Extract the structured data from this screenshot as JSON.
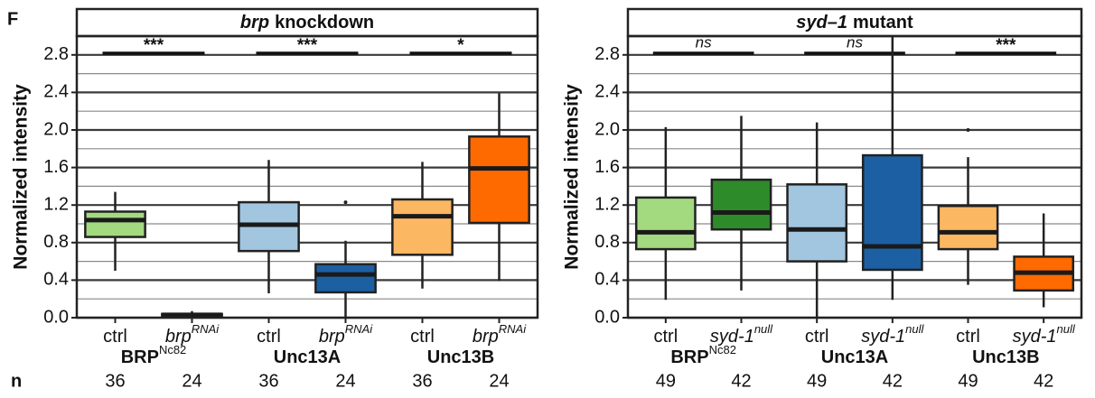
{
  "panel_label": "F",
  "chart_data": [
    {
      "type": "box",
      "title": [
        "brp",
        "knockdown"
      ],
      "ylabel": "Normalized intensity",
      "ylim": [
        0,
        3.0
      ],
      "yticks": [
        {
          "value": 0,
          "label": "0.0"
        },
        0.4,
        0.8,
        1.2,
        1.6,
        {
          "value": 2,
          "label": "2.0"
        },
        2.4,
        2.8
      ],
      "minor_yticks": [
        0.2,
        0.6,
        1.0,
        1.4,
        1.8,
        2.2,
        2.6
      ],
      "grid": true,
      "categories": [
        {
          "label": "ctrl"
        },
        {
          "label": "brp",
          "sup": "RNAi"
        },
        {
          "label": "ctrl"
        },
        {
          "label": "brp",
          "sup": "RNAi"
        },
        {
          "label": "ctrl"
        },
        {
          "label": "brp",
          "sup": "RNAi"
        }
      ],
      "groups": [
        {
          "label": "BRP",
          "sup": "Nc82"
        },
        {
          "label": "Unc13A"
        },
        {
          "label": "Unc13B"
        }
      ],
      "n_label": "n",
      "n": [
        36,
        24,
        36,
        24,
        36,
        24
      ],
      "significance": [
        "***",
        "***",
        "*"
      ],
      "boxes": [
        {
          "color": "#a3d97f",
          "low": 0.5,
          "q1": 0.86,
          "median": 1.04,
          "q3": 1.13,
          "high": 1.34
        },
        {
          "color": "#2e8b2a",
          "low": 0.0,
          "q1": 0.01,
          "median": 0.03,
          "q3": 0.04,
          "high": 0.07
        },
        {
          "color": "#a2c6e0",
          "low": 0.26,
          "q1": 0.71,
          "median": 0.99,
          "q3": 1.23,
          "high": 1.68
        },
        {
          "color": "#1c60a3",
          "low": 0.0,
          "q1": 0.27,
          "median": 0.46,
          "q3": 0.57,
          "high": 0.82,
          "outliers": [
            1.23
          ]
        },
        {
          "color": "#fcb763",
          "low": 0.31,
          "q1": 0.67,
          "median": 1.08,
          "q3": 1.26,
          "high": 1.66
        },
        {
          "color": "#ff6a00",
          "low": 0.39,
          "q1": 1.01,
          "median": 1.59,
          "q3": 1.93,
          "high": 2.39
        }
      ]
    },
    {
      "type": "box",
      "title": [
        "syd–1",
        "mutant"
      ],
      "ylabel": "Normalized intensity",
      "ylim": [
        0,
        3.0
      ],
      "yticks": [
        {
          "value": 0,
          "label": "0.0"
        },
        0.4,
        0.8,
        1.2,
        1.6,
        {
          "value": 2,
          "label": "2.0"
        },
        2.4,
        2.8
      ],
      "minor_yticks": [
        0.2,
        0.6,
        1.0,
        1.4,
        1.8,
        2.2,
        2.6
      ],
      "grid": true,
      "categories": [
        {
          "label": "ctrl"
        },
        {
          "label": "syd-1",
          "sup": "null"
        },
        {
          "label": "ctrl"
        },
        {
          "label": "syd-1",
          "sup": "null"
        },
        {
          "label": "ctrl"
        },
        {
          "label": "syd-1",
          "sup": "null"
        }
      ],
      "groups": [
        {
          "label": "BRP",
          "sup": "Nc82"
        },
        {
          "label": "Unc13A"
        },
        {
          "label": "Unc13B"
        }
      ],
      "n": [
        49,
        42,
        49,
        42,
        49,
        42
      ],
      "significance": [
        "ns",
        "ns",
        "***"
      ],
      "boxes": [
        {
          "color": "#a3d97f",
          "low": 0.19,
          "q1": 0.73,
          "median": 0.91,
          "q3": 1.28,
          "high": 2.03
        },
        {
          "color": "#2e8b2a",
          "low": 0.29,
          "q1": 0.94,
          "median": 1.12,
          "q3": 1.47,
          "high": 2.15
        },
        {
          "color": "#a2c6e0",
          "low": 0.0,
          "q1": 0.6,
          "median": 0.94,
          "q3": 1.42,
          "high": 2.08
        },
        {
          "color": "#1c60a3",
          "low": 0.19,
          "q1": 0.51,
          "median": 0.76,
          "q3": 1.73,
          "high": 3.0
        },
        {
          "color": "#fcb763",
          "low": 0.35,
          "q1": 0.73,
          "median": 0.91,
          "q3": 1.19,
          "high": 1.71,
          "outliers": [
            2.0
          ]
        },
        {
          "color": "#ff6a00",
          "low": 0.11,
          "q1": 0.29,
          "median": 0.48,
          "q3": 0.65,
          "high": 1.11
        }
      ]
    }
  ]
}
